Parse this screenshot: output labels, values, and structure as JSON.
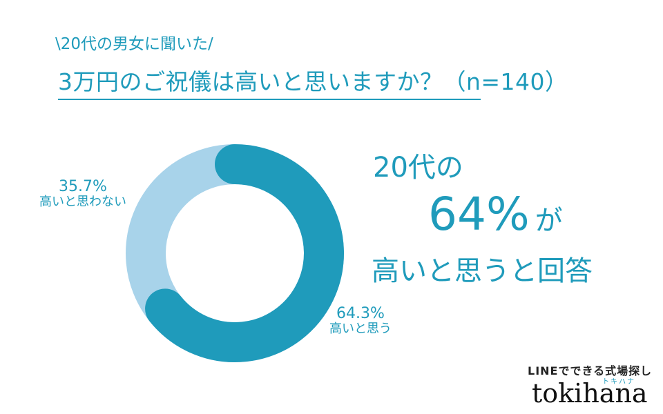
{
  "header": {
    "subtitle": "\\20代の男女に聞いた/",
    "title": "3万円のご祝儀は高いと思いますか？（n=140）"
  },
  "chart_data": {
    "type": "pie",
    "variant": "donut",
    "slices": [
      {
        "label": "高いと思う",
        "value": 64.3,
        "value_label": "64.3%",
        "color": "#1f9bbb"
      },
      {
        "label": "高いと思わない",
        "value": 35.7,
        "value_label": "35.7%",
        "color": "#a8d3ea"
      }
    ]
  },
  "headline": {
    "line1": "20代の",
    "big": "64%",
    "particle": "が",
    "line3": "高いと思うと回答"
  },
  "brand": {
    "tagline": "LINEでできる式場探し",
    "kana": "トキハナ",
    "logo": "tokihana"
  },
  "colors": {
    "accent": "#1f9bbb",
    "light": "#a8d3ea"
  }
}
